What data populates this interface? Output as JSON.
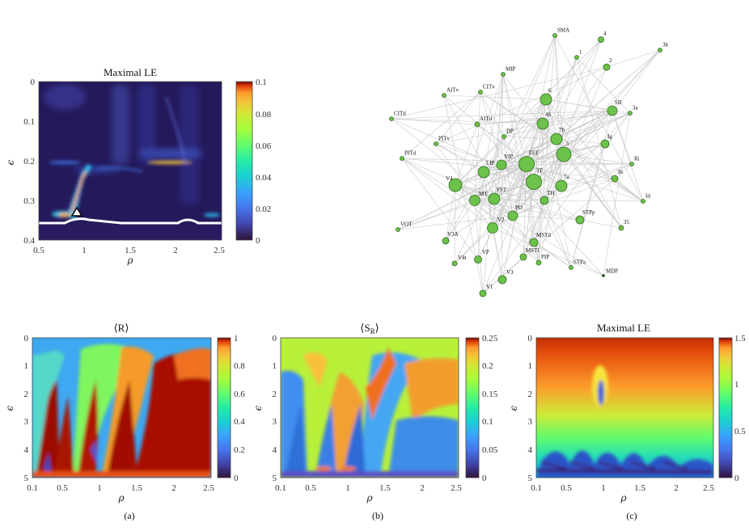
{
  "chart_data": [
    {
      "id": "top_heatmap",
      "type": "heatmap",
      "title": "Maximal LE",
      "xlabel": "ρ",
      "ylabel": "ϵ",
      "xlim": [
        0.5,
        2.5
      ],
      "ylim": [
        0,
        0.4
      ],
      "y_reversed": true,
      "xticks": [
        "0.5",
        "1",
        "1.5",
        "2",
        "2.5"
      ],
      "yticks": [
        "0",
        "0.1",
        "0.2",
        "0.3",
        "0.4"
      ],
      "colorbar": {
        "min": 0,
        "max": 0.1,
        "ticks": [
          "0",
          "0.02",
          "0.04",
          "0.06",
          "0.08",
          "0.1"
        ],
        "colormap": "turbo"
      },
      "marker": {
        "shape": "triangle",
        "rho": 0.9,
        "epsilon": 0.33
      }
    },
    {
      "id": "network",
      "type": "network",
      "nodes": [
        "SMA",
        "4",
        "3b",
        "1",
        "2",
        "MIP",
        "AITv",
        "CITv",
        "6",
        "SII",
        "3a",
        "CITd",
        "AITd",
        "46",
        "DP",
        "7b",
        "Ig",
        "PITv",
        "5",
        "Ri",
        "PITd",
        "VIP",
        "FEF",
        "LIP",
        "36",
        "V4",
        "TF",
        "7a",
        "MT",
        "FST",
        "TH",
        "Id",
        "PO",
        "V2",
        "STPp",
        "35",
        "VOT",
        "V3A",
        "MSTd",
        "MSTl",
        "PIP",
        "V4t",
        "VP",
        "STPa",
        "MDP",
        "V3",
        "V1"
      ]
    },
    {
      "id": "panel_a",
      "type": "heatmap",
      "title": "⟨R⟩",
      "xlabel": "ρ",
      "ylabel": "ϵ",
      "xlim": [
        0.1,
        2.5
      ],
      "ylim": [
        0,
        5
      ],
      "y_reversed": true,
      "xticks": [
        "0.1",
        "0.5",
        "1",
        "1.5",
        "2",
        "2.5"
      ],
      "yticks": [
        "0",
        "1",
        "2",
        "3",
        "4",
        "5"
      ],
      "colorbar": {
        "min": 0,
        "max": 1,
        "ticks": [
          "0",
          "0.2",
          "0.4",
          "0.6",
          "0.8",
          "1"
        ],
        "colormap": "turbo"
      },
      "caption": "(a)"
    },
    {
      "id": "panel_b",
      "type": "heatmap",
      "title": "⟨S_R⟩",
      "xlabel": "ρ",
      "ylabel": "ϵ",
      "xlim": [
        0.1,
        2.5
      ],
      "ylim": [
        0,
        5
      ],
      "y_reversed": true,
      "xticks": [
        "0.1",
        "0.5",
        "1",
        "1.5",
        "2",
        "2.5"
      ],
      "yticks": [
        "0",
        "1",
        "2",
        "3",
        "4",
        "5"
      ],
      "colorbar": {
        "min": 0,
        "max": 0.25,
        "ticks": [
          "0",
          "0.05",
          "0.1",
          "0.15",
          "0.2",
          "0.25"
        ],
        "colormap": "turbo"
      },
      "caption": "(b)"
    },
    {
      "id": "panel_c",
      "type": "heatmap",
      "title": "Maximal LE",
      "xlabel": "ρ",
      "ylabel": "ϵ",
      "xlim": [
        0.1,
        2.5
      ],
      "ylim": [
        0,
        5
      ],
      "y_reversed": true,
      "xticks": [
        "0.1",
        "0.5",
        "1",
        "1.5",
        "2",
        "2.5"
      ],
      "yticks": [
        "0",
        "1",
        "2",
        "3",
        "4",
        "5"
      ],
      "colorbar": {
        "min": 0,
        "max": 1.5,
        "ticks": [
          "0",
          "0.5",
          "1",
          "1.5"
        ],
        "colormap": "turbo"
      },
      "caption": "(c)"
    }
  ],
  "colors": {
    "node_fill": "#6cc24a",
    "node_stroke": "#2f6b1f",
    "edge": "#c8c8c8",
    "white_curve": "#ffffff"
  }
}
